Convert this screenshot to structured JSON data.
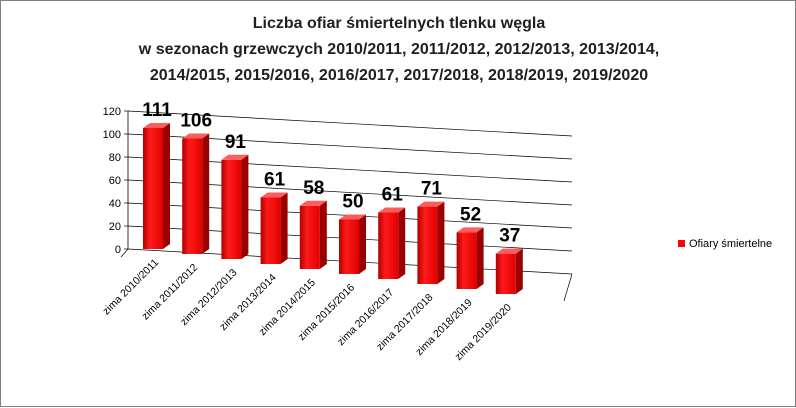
{
  "chart_data": {
    "type": "bar",
    "title_lines": [
      "Liczba ofiar śmiertelnych tlenku węgla",
      "w sezonach grzewczych 2010/2011, 2011/2012, 2012/2013, 2013/2014,",
      "2014/2015, 2015/2016, 2016/2017, 2017/2018, 2018/2019, 2019/2020"
    ],
    "categories": [
      "zima 2010/2011",
      "zima 2011/2012",
      "zima 2012/2013",
      "zima 2013/2014",
      "zima 2014/2015",
      "zima 2015/2016",
      "zima 2016/2017",
      "zima 2017/2018",
      "zima 2018/2019",
      "zima 2019/2020"
    ],
    "series": [
      {
        "name": "Ofiary śmiertelne",
        "values": [
          111,
          106,
          91,
          61,
          58,
          50,
          61,
          71,
          52,
          37
        ],
        "color": "#ff0000"
      }
    ],
    "y_ticks": [
      "0",
      "20",
      "40",
      "60",
      "80",
      "100",
      "120"
    ],
    "ylim": [
      0,
      120
    ],
    "grid": true,
    "legend_position": "right",
    "style": "3d-perspective-bar"
  }
}
